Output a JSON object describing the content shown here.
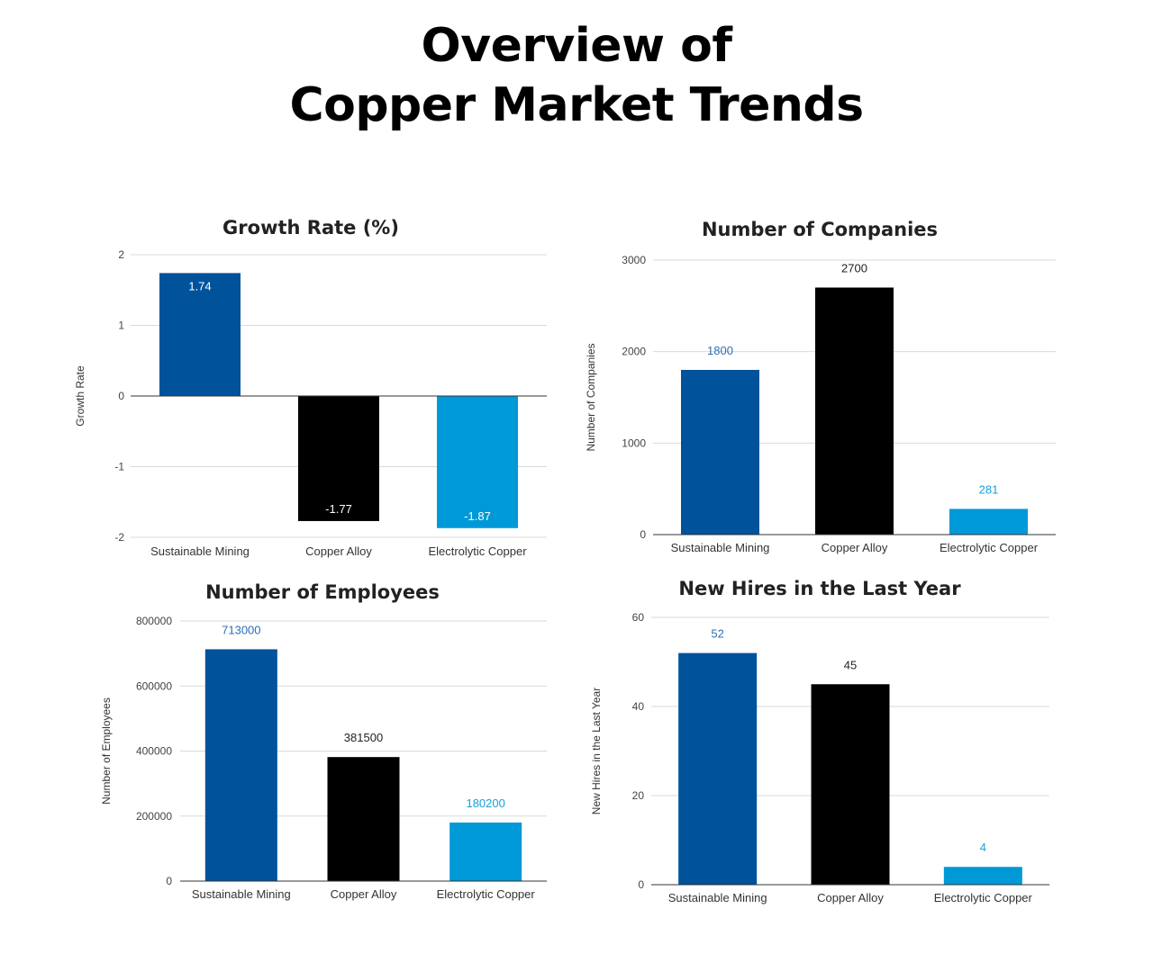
{
  "page": {
    "title_line1": "Overview of",
    "title_line2": "Copper Market Trends"
  },
  "colors": {
    "sustainable_mining": "#00529b",
    "copper_alloy": "#000000",
    "electrolytic_copper": "#0099d8"
  },
  "chart_data": [
    {
      "type": "bar",
      "title": "Growth Rate (%)",
      "xlabel": "",
      "ylabel": "Growth Rate",
      "categories": [
        "Sustainable Mining",
        "Copper Alloy",
        "Electrolytic Copper"
      ],
      "values": [
        1.74,
        -1.77,
        -1.87
      ],
      "labels": [
        "1.74",
        "-1.77",
        "-1.87"
      ],
      "ylim": [
        -2,
        2
      ],
      "yticks": [
        -2,
        -1,
        0,
        1,
        2
      ],
      "data_label_position": "inside",
      "grid": true
    },
    {
      "type": "bar",
      "title": "Number of Companies",
      "xlabel": "",
      "ylabel": "Number of Companies",
      "categories": [
        "Sustainable Mining",
        "Copper Alloy",
        "Electrolytic Copper"
      ],
      "values": [
        1800,
        2700,
        281
      ],
      "labels": [
        "1800",
        "2700",
        "281"
      ],
      "ylim": [
        0,
        3000
      ],
      "yticks": [
        0,
        1000,
        2000,
        3000
      ],
      "data_label_position": "above",
      "grid": true
    },
    {
      "type": "bar",
      "title": "Number of Employees",
      "xlabel": "",
      "ylabel": "Number of Employees",
      "categories": [
        "Sustainable Mining",
        "Copper Alloy",
        "Electrolytic Copper"
      ],
      "values": [
        713000,
        381500,
        180200
      ],
      "labels": [
        "713000",
        "381500",
        "180200"
      ],
      "ylim": [
        0,
        800000
      ],
      "yticks": [
        0,
        200000,
        400000,
        600000,
        800000
      ],
      "data_label_position": "above",
      "grid": true
    },
    {
      "type": "bar",
      "title": "New Hires in the Last Year",
      "xlabel": "",
      "ylabel": "New Hires in the Last Year",
      "categories": [
        "Sustainable Mining",
        "Copper Alloy",
        "Electrolytic Copper"
      ],
      "values": [
        52,
        45,
        4
      ],
      "labels": [
        "52",
        "45",
        "4"
      ],
      "ylim": [
        0,
        60
      ],
      "yticks": [
        0,
        20,
        40,
        60
      ],
      "data_label_position": "above",
      "grid": true
    }
  ]
}
